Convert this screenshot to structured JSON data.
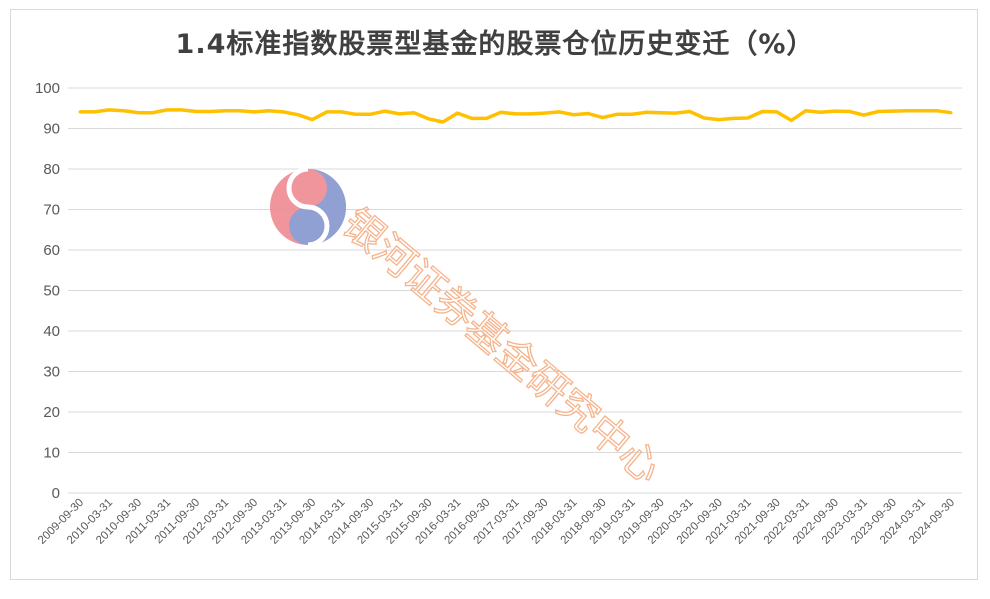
{
  "chart_data": {
    "type": "line",
    "title": "1.4标准指数股票型基金的股票仓位历史变迁（%）",
    "xlabel": "",
    "ylabel": "",
    "ylim": [
      0,
      100
    ],
    "yticks": [
      0,
      10,
      20,
      30,
      40,
      50,
      60,
      70,
      80,
      90,
      100
    ],
    "grid": true,
    "legend": "none",
    "color": "#FFC000",
    "categories": [
      "2009-09-30",
      "2009-12-31",
      "2010-03-31",
      "2010-06-30",
      "2010-09-30",
      "2010-12-31",
      "2011-03-31",
      "2011-06-30",
      "2011-09-30",
      "2011-12-31",
      "2012-03-31",
      "2012-06-30",
      "2012-09-30",
      "2012-12-31",
      "2013-03-31",
      "2013-06-30",
      "2013-09-30",
      "2013-12-31",
      "2014-03-31",
      "2014-06-30",
      "2014-09-30",
      "2014-12-31",
      "2015-03-31",
      "2015-06-30",
      "2015-09-30",
      "2015-12-31",
      "2016-03-31",
      "2016-06-30",
      "2016-09-30",
      "2016-12-31",
      "2017-03-31",
      "2017-06-30",
      "2017-09-30",
      "2017-12-31",
      "2018-03-31",
      "2018-06-30",
      "2018-09-30",
      "2018-12-31",
      "2019-03-31",
      "2019-06-30",
      "2019-09-30",
      "2019-12-31",
      "2020-03-31",
      "2020-06-30",
      "2020-09-30",
      "2020-12-31",
      "2021-03-31",
      "2021-06-30",
      "2021-09-30",
      "2021-12-31",
      "2022-03-31",
      "2022-06-30",
      "2022-09-30",
      "2022-12-31",
      "2023-03-31",
      "2023-06-30",
      "2023-09-30",
      "2023-12-31",
      "2024-03-31",
      "2024-06-30",
      "2024-09-30"
    ],
    "tick_labels": [
      "2009-09-30",
      "2010-03-31",
      "2010-09-30",
      "2011-03-31",
      "2011-09-30",
      "2012-03-31",
      "2012-09-30",
      "2013-03-31",
      "2013-09-30",
      "2014-03-31",
      "2014-09-30",
      "2015-03-31",
      "2015-09-30",
      "2016-03-31",
      "2016-09-30",
      "2017-03-31",
      "2017-09-30",
      "2018-03-31",
      "2018-09-30",
      "2019-03-31",
      "2019-09-30",
      "2020-03-31",
      "2020-09-30",
      "2021-03-31",
      "2021-09-30",
      "2022-03-31",
      "2022-09-30",
      "2023-03-31",
      "2023-09-30",
      "2024-03-31",
      "2024-09-30"
    ],
    "values": [
      94.1,
      94.1,
      94.6,
      94.4,
      93.9,
      93.9,
      94.6,
      94.6,
      94.2,
      94.2,
      94.4,
      94.4,
      94.1,
      94.4,
      94.1,
      93.4,
      92.2,
      94.1,
      94.1,
      93.5,
      93.5,
      94.3,
      93.6,
      93.9,
      92.4,
      91.6,
      93.8,
      92.5,
      92.5,
      94.0,
      93.6,
      93.6,
      93.8,
      94.1,
      93.4,
      93.7,
      92.7,
      93.5,
      93.5,
      94.0,
      93.9,
      93.8,
      94.2,
      92.6,
      92.2,
      92.5,
      92.6,
      94.2,
      94.1,
      92.0,
      94.4,
      94.0,
      94.3,
      94.2,
      93.3,
      94.2,
      94.3,
      94.4,
      94.4,
      94.4,
      93.9
    ]
  },
  "watermark": {
    "text": "银河证券基金研究中心",
    "logo": "galaxy-securities-logo"
  }
}
